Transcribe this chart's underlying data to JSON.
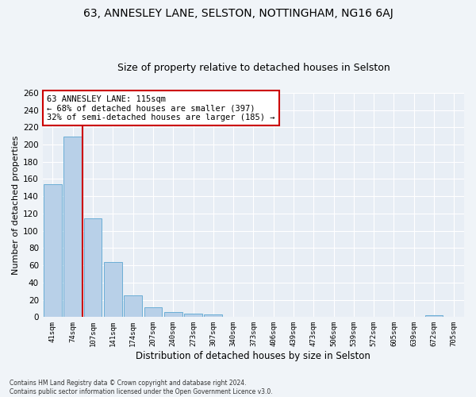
{
  "title": "63, ANNESLEY LANE, SELSTON, NOTTINGHAM, NG16 6AJ",
  "subtitle": "Size of property relative to detached houses in Selston",
  "xlabel": "Distribution of detached houses by size in Selston",
  "ylabel": "Number of detached properties",
  "categories": [
    "41sqm",
    "74sqm",
    "107sqm",
    "141sqm",
    "174sqm",
    "207sqm",
    "240sqm",
    "273sqm",
    "307sqm",
    "340sqm",
    "373sqm",
    "406sqm",
    "439sqm",
    "473sqm",
    "506sqm",
    "539sqm",
    "572sqm",
    "605sqm",
    "639sqm",
    "672sqm",
    "705sqm"
  ],
  "values": [
    154,
    209,
    114,
    64,
    25,
    11,
    6,
    4,
    3,
    0,
    0,
    0,
    0,
    0,
    0,
    0,
    0,
    0,
    0,
    2,
    0
  ],
  "bar_color": "#b8d0e8",
  "bar_edge_color": "#6baed6",
  "vline_x": 2.5,
  "vline_color": "#cc0000",
  "annotation_text": "63 ANNESLEY LANE: 115sqm\n← 68% of detached houses are smaller (397)\n32% of semi-detached houses are larger (185) →",
  "annotation_box_color": "#ffffff",
  "annotation_box_edge_color": "#cc0000",
  "ylim": [
    0,
    260
  ],
  "yticks": [
    0,
    20,
    40,
    60,
    80,
    100,
    120,
    140,
    160,
    180,
    200,
    220,
    240,
    260
  ],
  "background_color": "#e8eef5",
  "grid_color": "#ffffff",
  "fig_bg_color": "#f0f4f8",
  "title_fontsize": 10,
  "subtitle_fontsize": 9,
  "footnote": "Contains HM Land Registry data © Crown copyright and database right 2024.\nContains public sector information licensed under the Open Government Licence v3.0."
}
